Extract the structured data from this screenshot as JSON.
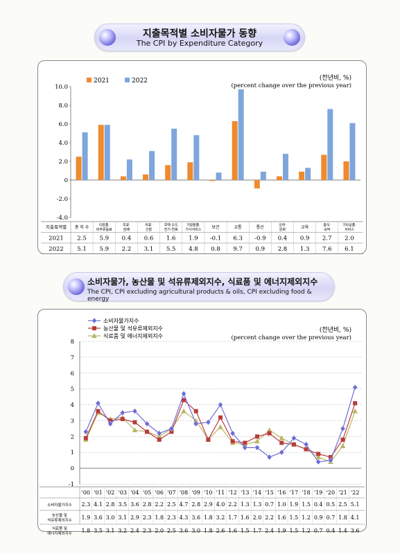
{
  "banner1": {
    "korean": "지출목적별 소비자물가 동향",
    "english": "The CPI by Expenditure Category"
  },
  "banner2": {
    "korean": "소비자물가, 농산물 및 석유류제외지수, 식료품 및 에너지제외지수",
    "english": "The CPI, CPI excluding agricultural products & oils, CPI excluding food & energy"
  },
  "colors": {
    "c2021": "#ef8a2e",
    "c2022": "#7ea6dc",
    "cpi": "#6c6cd6",
    "core1": "#b83c3c",
    "core2": "#b9b563"
  },
  "chart_data": [
    {
      "type": "bar",
      "unit_ko": "(전년비, %)",
      "unit_en": "(percent change over the previous year)",
      "row_header": "지출목적별",
      "categories": [
        [
          "총 지 수"
        ],
        [
          "식료품·",
          "비주류음료"
        ],
        [
          "주류·",
          "담배"
        ],
        [
          "의류·",
          "신발"
        ],
        [
          "주택·수도",
          "전기·연료"
        ],
        [
          "가정용품·",
          "가사서비스"
        ],
        [
          "보건"
        ],
        [
          "교통"
        ],
        [
          "통신"
        ],
        [
          "오락·",
          "문화"
        ],
        [
          "교육"
        ],
        [
          "음식·",
          "숙박"
        ],
        [
          "기타상품·",
          "서비스"
        ]
      ],
      "series": [
        {
          "name": "2021",
          "values": [
            2.5,
            5.9,
            0.4,
            0.6,
            1.6,
            1.9,
            -0.1,
            6.3,
            -0.9,
            0.4,
            0.9,
            2.7,
            2.0
          ]
        },
        {
          "name": "2022",
          "values": [
            5.1,
            5.9,
            2.2,
            3.1,
            5.5,
            4.8,
            0.8,
            9.7,
            0.9,
            2.8,
            1.3,
            7.6,
            6.1
          ]
        }
      ],
      "ylim": [
        -4.0,
        10.0
      ],
      "yticks": [
        "10.0",
        "8.0",
        "6.0",
        "4.0",
        "2.0",
        "0",
        "-2.0",
        "-4.0"
      ],
      "legend_position": "top-left"
    },
    {
      "type": "line",
      "unit_ko": "(전년비, %)",
      "unit_en": "(percent change over the previous year)",
      "x": [
        "'00",
        "'01",
        "'02",
        "'03",
        "'04",
        "'05",
        "'06",
        "'07",
        "'08",
        "'09",
        "'10",
        "'11",
        "'12",
        "'13",
        "'14",
        "'15",
        "'16",
        "'17",
        "'18",
        "'19",
        "'20",
        "'21",
        "'22"
      ],
      "series": [
        {
          "name": "소비자물가지수",
          "row_label": [
            "소비자물가지수"
          ],
          "values": [
            2.3,
            4.1,
            2.8,
            3.5,
            3.6,
            2.8,
            2.2,
            2.5,
            4.7,
            2.8,
            2.9,
            4.0,
            2.2,
            1.3,
            1.3,
            0.7,
            1.0,
            1.9,
            1.5,
            0.4,
            0.5,
            2.5,
            5.1
          ]
        },
        {
          "name": "농산물 및 석유류제외지수",
          "row_label": [
            "농산물 및",
            "석유류제외지수"
          ],
          "values": [
            1.9,
            3.6,
            3.0,
            3.1,
            2.9,
            2.3,
            1.8,
            2.3,
            4.3,
            3.6,
            1.8,
            3.2,
            1.7,
            1.6,
            2.0,
            2.2,
            1.6,
            1.5,
            1.2,
            0.9,
            0.7,
            1.8,
            4.1
          ]
        },
        {
          "name": "식료품 및 에너지제외지수",
          "row_label": [
            "식료품 및",
            "에너지제외지수"
          ],
          "values": [
            1.8,
            3.5,
            3.1,
            3.2,
            2.4,
            2.3,
            2.0,
            2.5,
            3.6,
            3.0,
            1.8,
            2.6,
            1.6,
            1.5,
            1.7,
            2.4,
            1.9,
            1.5,
            1.2,
            0.7,
            0.4,
            1.4,
            3.6
          ]
        }
      ],
      "ylim": [
        -1,
        8
      ],
      "yticks": [
        "8",
        "7",
        "6",
        "5",
        "4",
        "3",
        "2",
        "1",
        "0",
        "-1"
      ],
      "legend_position": "top-left"
    }
  ]
}
